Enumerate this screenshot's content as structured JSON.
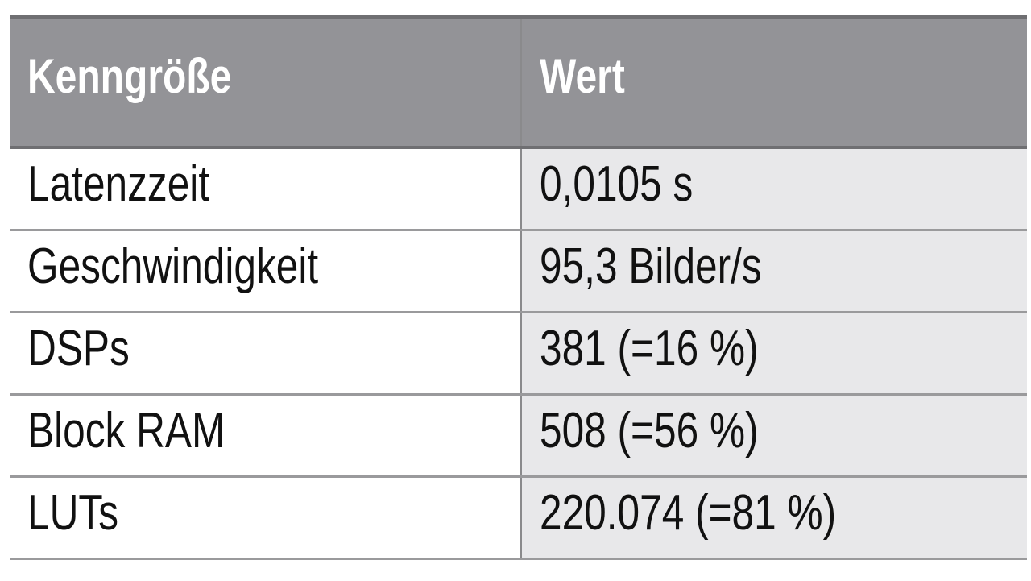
{
  "table": {
    "headers": [
      "Kenngröße",
      "Wert"
    ],
    "rows": [
      {
        "key": "Latenzzeit",
        "value": "0,0105 s"
      },
      {
        "key": "Geschwindigkeit",
        "value": "95,3 Bilder/s"
      },
      {
        "key": "DSPs",
        "value": "381 (=16 %)"
      },
      {
        "key": "Block RAM",
        "value": "508 (=56 %)"
      },
      {
        "key": "LUTs",
        "value": "220.074 (=81 %)"
      }
    ]
  },
  "colors": {
    "header_bg": "#939397",
    "value_column_bg": "#e8e8ea",
    "header_text": "#ffffff"
  }
}
